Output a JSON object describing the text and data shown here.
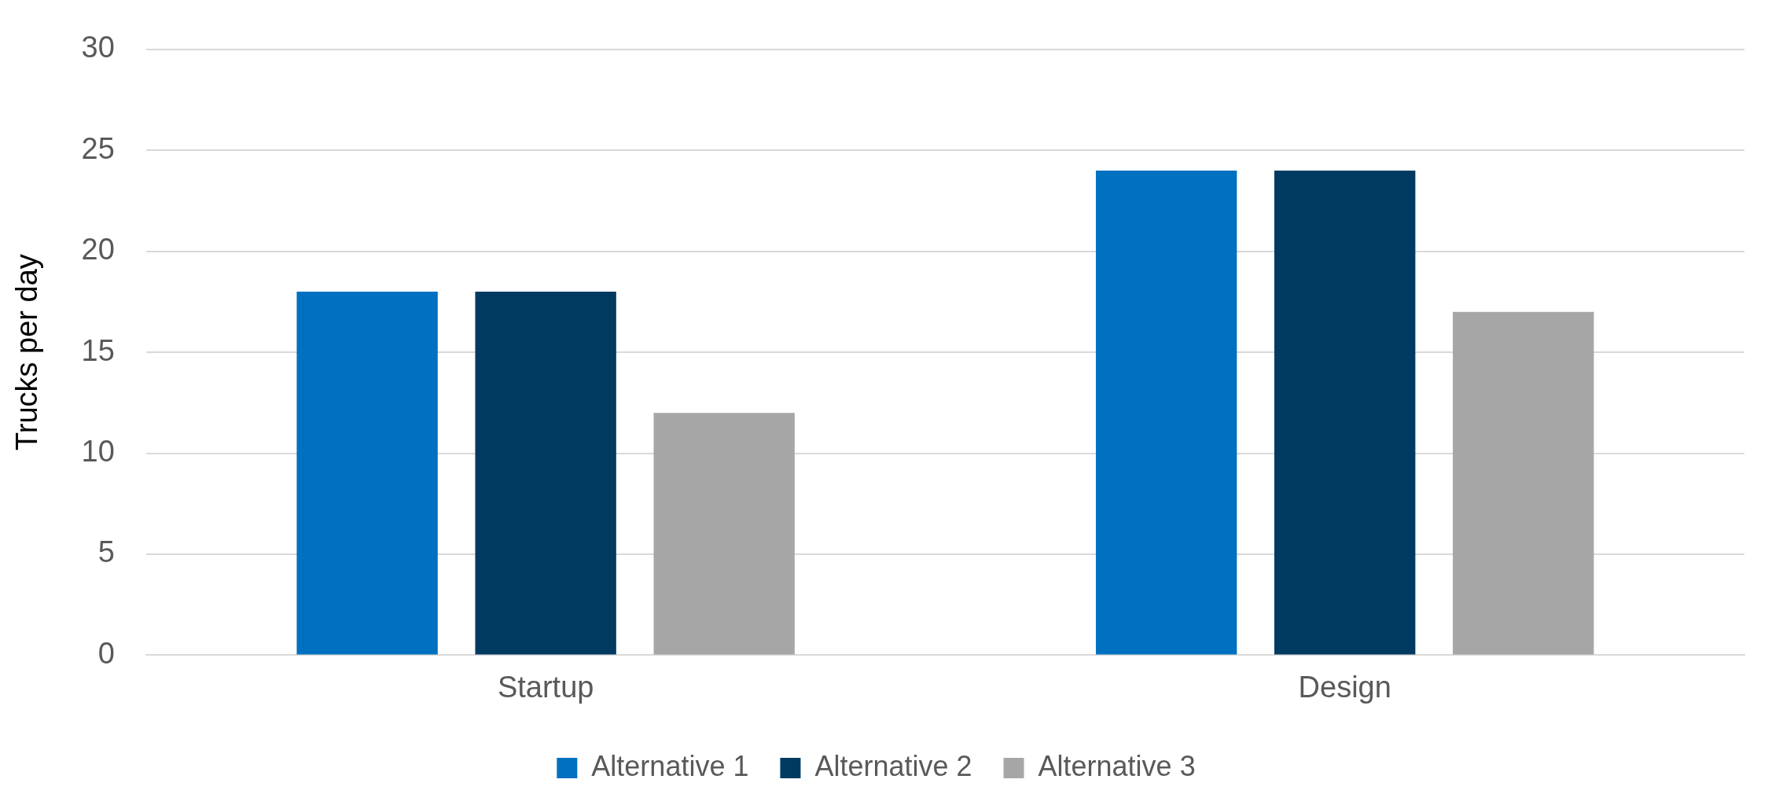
{
  "chart_data": {
    "type": "bar",
    "ylabel": "Trucks per day",
    "categories": [
      "Startup",
      "Design"
    ],
    "series": [
      {
        "name": "Alternative 1",
        "color": "#0070c0",
        "values": [
          18,
          24
        ]
      },
      {
        "name": "Alternative 2",
        "color": "#003a60",
        "values": [
          18,
          24
        ]
      },
      {
        "name": "Alternative 3",
        "color": "#a6a6a6",
        "values": [
          12,
          17
        ]
      }
    ],
    "ylim": [
      0,
      30
    ],
    "yticks": [
      0,
      5,
      10,
      15,
      20,
      25,
      30
    ],
    "grid": "y",
    "legend": "bottom"
  }
}
